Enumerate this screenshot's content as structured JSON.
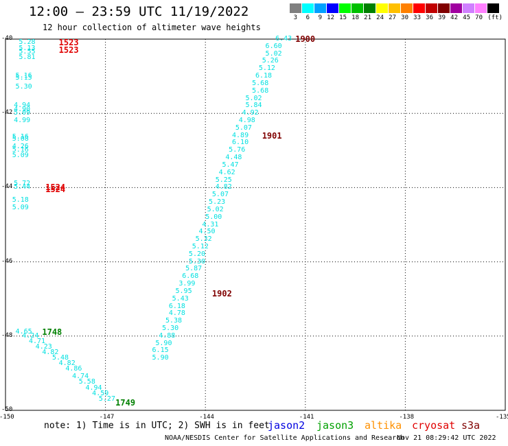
{
  "header": {
    "title": "12:00 – 23:59 UTC 11/19/2022",
    "subtitle": "12 hour collection of altimeter wave heights"
  },
  "legend": {
    "unit": "(ft)",
    "bins": [
      {
        "label": "3",
        "color": "#808080"
      },
      {
        "label": "6",
        "color": "#00ffff"
      },
      {
        "label": "9",
        "color": "#00a0ff"
      },
      {
        "label": "12",
        "color": "#0000ff"
      },
      {
        "label": "15",
        "color": "#00ff00"
      },
      {
        "label": "18",
        "color": "#00c000"
      },
      {
        "label": "21",
        "color": "#008000"
      },
      {
        "label": "24",
        "color": "#ffff00"
      },
      {
        "label": "27",
        "color": "#ffc000"
      },
      {
        "label": "30",
        "color": "#ff8000"
      },
      {
        "label": "33",
        "color": "#ff0000"
      },
      {
        "label": "36",
        "color": "#c00000"
      },
      {
        "label": "39",
        "color": "#800000"
      },
      {
        "label": "42",
        "color": "#a000a0"
      },
      {
        "label": "45",
        "color": "#d080ff"
      },
      {
        "label": "70",
        "color": "#ff80ff"
      },
      {
        "label": "",
        "color": "#000000"
      }
    ]
  },
  "axes": {
    "lat_labels": [
      "-40",
      "-42",
      "-44",
      "-46",
      "-48",
      "-50"
    ],
    "lon_labels": [
      "-150",
      "-147",
      "-144",
      "-141",
      "-138",
      "-135"
    ]
  },
  "satellites": [
    {
      "name": "jason2",
      "color": "#0000e0"
    },
    {
      "name": "jason3",
      "color": "#00a000"
    },
    {
      "name": "altika",
      "color": "#ff9000"
    },
    {
      "name": "cryosat",
      "color": "#e00000"
    },
    {
      "name": "s3a",
      "color": "#800000"
    }
  ],
  "note": "note: 1) Time is in UTC; 2) SWH is in feet",
  "footer": {
    "credit": "NOAA/NESDIS Center for Satellite Applications and Research",
    "generated": "Nov 21 08:29:42 UTC 2022"
  },
  "passes": [
    {
      "label": "1523",
      "color": "#e00000",
      "lon": -148.4,
      "lat": -40.1
    },
    {
      "label": "1523",
      "color": "#e00000",
      "lon": -148.4,
      "lat": -40.3
    },
    {
      "label": "1524",
      "color": "#e00000",
      "lon": -148.8,
      "lat": -44.0
    },
    {
      "label": "1524",
      "color": "#e00000",
      "lon": -148.8,
      "lat": -44.05
    },
    {
      "label": "1748",
      "color": "#008000",
      "lon": -148.9,
      "lat": -47.9
    },
    {
      "label": "1749",
      "color": "#008000",
      "lon": -146.7,
      "lat": -49.8
    },
    {
      "label": "1900",
      "color": "#800000",
      "lon": -141.3,
      "lat": -40.0
    },
    {
      "label": "1901",
      "color": "#800000",
      "lon": -142.3,
      "lat": -42.6
    },
    {
      "label": "1902",
      "color": "#800000",
      "lon": -143.8,
      "lat": -46.85
    }
  ],
  "tracks": {
    "track_a": {
      "points": [
        {
          "lon": -149.6,
          "lat": -40.1,
          "v": "5.28"
        },
        {
          "lon": -149.6,
          "lat": -40.25,
          "v": "5.13"
        },
        {
          "lon": -149.6,
          "lat": -40.35,
          "v": "5.55"
        },
        {
          "lon": -149.6,
          "lat": -40.5,
          "v": "5.81"
        },
        {
          "lon": -149.7,
          "lat": -41.0,
          "v": "5.16"
        },
        {
          "lon": -149.7,
          "lat": -41.05,
          "v": "5.15"
        },
        {
          "lon": -149.7,
          "lat": -41.3,
          "v": "5.30"
        },
        {
          "lon": -149.75,
          "lat": -41.8,
          "v": "4.94"
        },
        {
          "lon": -149.75,
          "lat": -41.9,
          "v": "4.90"
        },
        {
          "lon": -149.75,
          "lat": -42.0,
          "v": "5.09"
        },
        {
          "lon": -149.75,
          "lat": -42.2,
          "v": "4.99"
        },
        {
          "lon": -149.8,
          "lat": -42.65,
          "v": "5.16"
        },
        {
          "lon": -149.8,
          "lat": -42.7,
          "v": "5.08"
        },
        {
          "lon": -149.8,
          "lat": -42.9,
          "v": "4.26"
        },
        {
          "lon": -149.8,
          "lat": -43.0,
          "v": "5.16"
        },
        {
          "lon": -149.8,
          "lat": -43.15,
          "v": "5.09"
        },
        {
          "lon": -149.75,
          "lat": -43.9,
          "v": "5.72"
        },
        {
          "lon": -149.75,
          "lat": -44.0,
          "v": "5.44"
        },
        {
          "lon": -149.8,
          "lat": -44.35,
          "v": "5.18"
        },
        {
          "lon": -149.8,
          "lat": -44.55,
          "v": "5.09"
        }
      ]
    },
    "track_b": {
      "points": [
        {
          "lon": -141.9,
          "lat": -40.0,
          "v": "6.43"
        },
        {
          "lon": -142.2,
          "lat": -40.2,
          "v": "6.60"
        },
        {
          "lon": -142.2,
          "lat": -40.4,
          "v": "5.02"
        },
        {
          "lon": -142.3,
          "lat": -40.6,
          "v": "5.26"
        },
        {
          "lon": -142.4,
          "lat": -40.8,
          "v": "5.12"
        },
        {
          "lon": -142.5,
          "lat": -41.0,
          "v": "6.18"
        },
        {
          "lon": -142.6,
          "lat": -41.2,
          "v": "5.68"
        },
        {
          "lon": -142.6,
          "lat": -41.4,
          "v": "5.68"
        },
        {
          "lon": -142.8,
          "lat": -41.6,
          "v": "5.02"
        },
        {
          "lon": -142.8,
          "lat": -41.8,
          "v": "5.84"
        },
        {
          "lon": -142.9,
          "lat": -42.0,
          "v": "4.92"
        },
        {
          "lon": -143.0,
          "lat": -42.2,
          "v": "4.98"
        },
        {
          "lon": -143.1,
          "lat": -42.4,
          "v": "5.07"
        },
        {
          "lon": -143.2,
          "lat": -42.6,
          "v": "4.89"
        },
        {
          "lon": -143.2,
          "lat": -42.8,
          "v": "6.10"
        },
        {
          "lon": -143.3,
          "lat": -43.0,
          "v": "5.76"
        },
        {
          "lon": -143.4,
          "lat": -43.2,
          "v": "4.48"
        },
        {
          "lon": -143.5,
          "lat": -43.4,
          "v": "5.47"
        },
        {
          "lon": -143.6,
          "lat": -43.6,
          "v": "4.62"
        },
        {
          "lon": -143.7,
          "lat": -43.8,
          "v": "5.25"
        },
        {
          "lon": -143.7,
          "lat": -44.0,
          "v": "4.82"
        },
        {
          "lon": -143.8,
          "lat": -44.2,
          "v": "5.07"
        },
        {
          "lon": -143.9,
          "lat": -44.4,
          "v": "5.23"
        },
        {
          "lon": -143.95,
          "lat": -44.6,
          "v": "5.02"
        },
        {
          "lon": -144.0,
          "lat": -44.8,
          "v": "5.00"
        },
        {
          "lon": -144.1,
          "lat": -45.0,
          "v": "4.31"
        },
        {
          "lon": -144.2,
          "lat": -45.2,
          "v": "4.50"
        },
        {
          "lon": -144.3,
          "lat": -45.4,
          "v": "5.32"
        },
        {
          "lon": -144.4,
          "lat": -45.6,
          "v": "5.12"
        },
        {
          "lon": -144.5,
          "lat": -45.8,
          "v": "5.20"
        },
        {
          "lon": -144.5,
          "lat": -46.0,
          "v": "5.30"
        },
        {
          "lon": -144.6,
          "lat": -46.2,
          "v": "5.87"
        },
        {
          "lon": -144.7,
          "lat": -46.4,
          "v": "6.68"
        },
        {
          "lon": -144.8,
          "lat": -46.6,
          "v": "3.99"
        },
        {
          "lon": -144.9,
          "lat": -46.8,
          "v": "5.95"
        },
        {
          "lon": -145.0,
          "lat": -47.0,
          "v": "5.43"
        },
        {
          "lon": -145.1,
          "lat": -47.2,
          "v": "6.18"
        },
        {
          "lon": -145.1,
          "lat": -47.4,
          "v": "4.78"
        },
        {
          "lon": -145.2,
          "lat": -47.6,
          "v": "5.38"
        },
        {
          "lon": -145.3,
          "lat": -47.8,
          "v": "5.30"
        },
        {
          "lon": -145.4,
          "lat": -48.0,
          "v": "4.88"
        },
        {
          "lon": -145.5,
          "lat": -48.2,
          "v": "5.90"
        },
        {
          "lon": -145.6,
          "lat": -48.4,
          "v": "6.15"
        },
        {
          "lon": -145.6,
          "lat": -48.6,
          "v": "5.90"
        }
      ]
    },
    "track_c": {
      "points": [
        {
          "lon": -149.7,
          "lat": -47.9,
          "v": "4.65"
        },
        {
          "lon": -149.5,
          "lat": -48.0,
          "v": "4.24"
        },
        {
          "lon": -149.3,
          "lat": -48.15,
          "v": "4.71"
        },
        {
          "lon": -149.1,
          "lat": -48.3,
          "v": "4.23"
        },
        {
          "lon": -148.9,
          "lat": -48.45,
          "v": "4.82"
        },
        {
          "lon": -148.6,
          "lat": -48.6,
          "v": "5.48"
        },
        {
          "lon": -148.4,
          "lat": -48.75,
          "v": "4.82"
        },
        {
          "lon": -148.2,
          "lat": -48.9,
          "v": "4.86"
        },
        {
          "lon": -148.0,
          "lat": -49.1,
          "v": "4.74"
        },
        {
          "lon": -147.8,
          "lat": -49.25,
          "v": "5.58"
        },
        {
          "lon": -147.6,
          "lat": -49.4,
          "v": "4.94"
        },
        {
          "lon": -147.4,
          "lat": -49.55,
          "v": "4.59"
        },
        {
          "lon": -147.2,
          "lat": -49.7,
          "v": "5.27"
        }
      ]
    }
  }
}
